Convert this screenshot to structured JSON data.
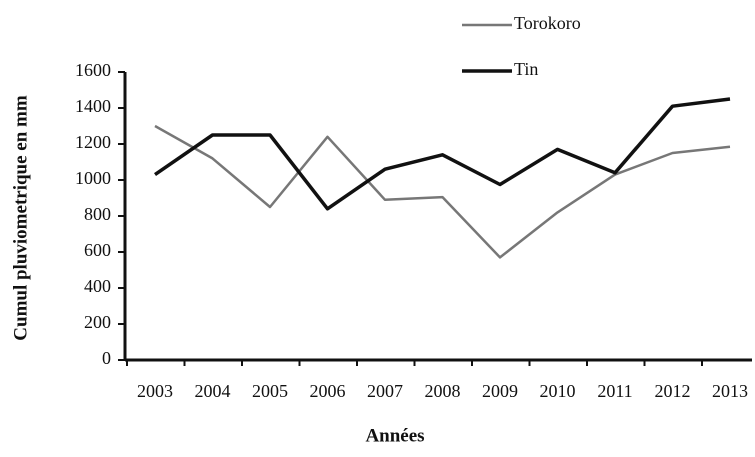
{
  "chart_data": {
    "type": "line",
    "x_label": "Années",
    "y_label": "Cumul pluviometrique en mm",
    "categories": [
      "2003",
      "2004",
      "2005",
      "2006",
      "2007",
      "2008",
      "2009",
      "2010",
      "2011",
      "2012",
      "2013"
    ],
    "series": [
      {
        "name": "Torokoro",
        "color": "#777777",
        "values": [
          1300,
          1120,
          850,
          1240,
          890,
          905,
          570,
          820,
          1030,
          1150,
          1185
        ]
      },
      {
        "name": "Tin",
        "color": "#111111",
        "values": [
          1030,
          1250,
          1250,
          840,
          1060,
          1140,
          975,
          1170,
          1040,
          1410,
          1450
        ]
      }
    ],
    "ylim": [
      0,
      1600
    ],
    "yticks": [
      0,
      200,
      400,
      600,
      800,
      1000,
      1200,
      1400,
      1600
    ],
    "grid": false
  }
}
